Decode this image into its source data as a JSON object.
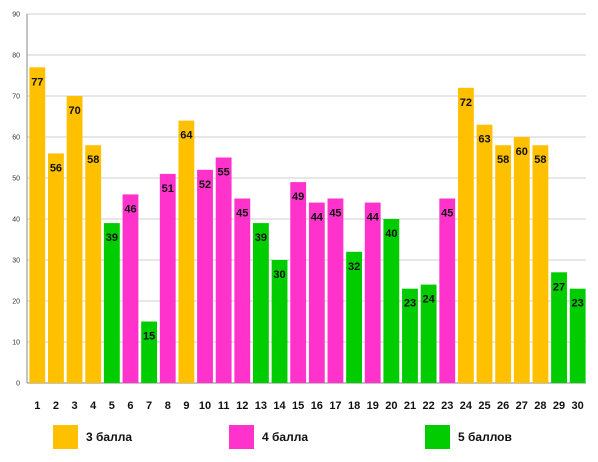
{
  "chart_data": {
    "type": "bar",
    "categories": [
      "1",
      "2",
      "3",
      "4",
      "5",
      "6",
      "7",
      "8",
      "9",
      "10",
      "11",
      "12",
      "13",
      "14",
      "15",
      "16",
      "17",
      "18",
      "19",
      "20",
      "21",
      "22",
      "23",
      "24",
      "25",
      "26",
      "27",
      "28",
      "29",
      "30"
    ],
    "values": [
      77,
      56,
      70,
      58,
      39,
      46,
      15,
      51,
      64,
      52,
      55,
      45,
      39,
      30,
      49,
      44,
      45,
      32,
      44,
      40,
      23,
      24,
      45,
      72,
      63,
      58,
      60,
      58,
      27,
      23
    ],
    "groups": [
      "3",
      "3",
      "3",
      "3",
      "5",
      "4",
      "5",
      "4",
      "3",
      "4",
      "4",
      "4",
      "5",
      "5",
      "4",
      "4",
      "4",
      "5",
      "4",
      "5",
      "5",
      "5",
      "4",
      "3",
      "3",
      "3",
      "3",
      "3",
      "5",
      "5"
    ],
    "series": [
      {
        "key": "3",
        "name": "3 балла",
        "color": "#FFC000"
      },
      {
        "key": "4",
        "name": "4 балла",
        "color": "#FF33CC"
      },
      {
        "key": "5",
        "name": "5 баллов",
        "color": "#00CC00"
      }
    ],
    "yticks": [
      "0",
      "10",
      "20",
      "30",
      "40",
      "50",
      "60",
      "70",
      "80",
      "90"
    ],
    "ylim": [
      0,
      90
    ],
    "grid": true,
    "legend_position": "bottom",
    "title": "",
    "xlabel": "",
    "ylabel": ""
  }
}
